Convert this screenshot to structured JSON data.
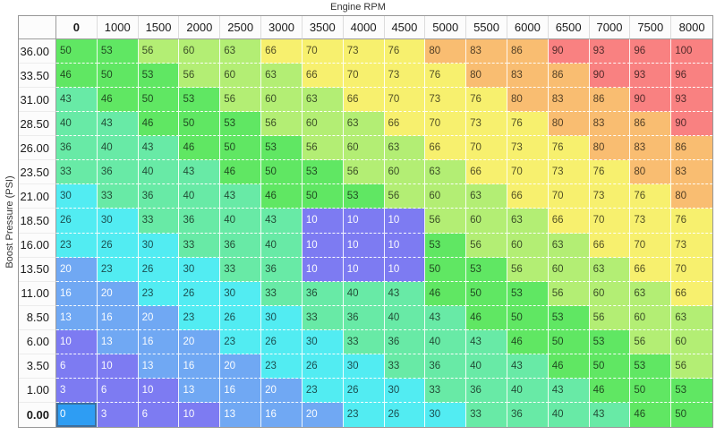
{
  "x_axis_title": "Engine RPM",
  "y_axis_title": "Boost Pressure (PSI)",
  "chart_data": {
    "type": "heatmap",
    "title": "Engine RPM",
    "xlabel": "Engine RPM",
    "ylabel": "Boost Pressure (PSI)",
    "columns": [
      "0",
      "1000",
      "1500",
      "2000",
      "2500",
      "3000",
      "3500",
      "4000",
      "4500",
      "5000",
      "5500",
      "6000",
      "6500",
      "7000",
      "7500",
      "8000"
    ],
    "rows": [
      "36.00",
      "33.50",
      "31.00",
      "28.50",
      "26.00",
      "23.50",
      "21.00",
      "18.50",
      "16.00",
      "13.50",
      "11.00",
      "8.50",
      "6.00",
      "3.50",
      "1.00",
      "0.00"
    ],
    "values": [
      [
        50,
        53,
        56,
        60,
        63,
        66,
        70,
        73,
        76,
        80,
        83,
        86,
        90,
        93,
        96,
        100
      ],
      [
        46,
        50,
        53,
        56,
        60,
        63,
        66,
        70,
        73,
        76,
        80,
        83,
        86,
        90,
        93,
        96
      ],
      [
        43,
        46,
        50,
        53,
        56,
        60,
        63,
        66,
        70,
        73,
        76,
        80,
        83,
        86,
        90,
        93
      ],
      [
        40,
        43,
        46,
        50,
        53,
        56,
        60,
        63,
        66,
        70,
        73,
        76,
        80,
        83,
        86,
        90
      ],
      [
        36,
        40,
        43,
        46,
        50,
        53,
        56,
        60,
        63,
        66,
        70,
        73,
        76,
        80,
        83,
        86
      ],
      [
        33,
        36,
        40,
        43,
        46,
        50,
        53,
        56,
        60,
        63,
        66,
        70,
        73,
        76,
        80,
        83
      ],
      [
        30,
        33,
        36,
        40,
        43,
        46,
        50,
        53,
        56,
        60,
        63,
        66,
        70,
        73,
        76,
        80
      ],
      [
        26,
        30,
        33,
        36,
        40,
        43,
        10,
        10,
        10,
        56,
        60,
        63,
        66,
        70,
        73,
        76
      ],
      [
        23,
        26,
        30,
        33,
        36,
        40,
        10,
        10,
        10,
        53,
        56,
        60,
        63,
        66,
        70,
        73
      ],
      [
        20,
        23,
        26,
        30,
        33,
        36,
        10,
        10,
        10,
        50,
        53,
        56,
        60,
        63,
        66,
        70
      ],
      [
        16,
        20,
        23,
        26,
        30,
        33,
        36,
        40,
        43,
        46,
        50,
        53,
        56,
        60,
        63,
        66
      ],
      [
        13,
        16,
        20,
        23,
        26,
        30,
        33,
        36,
        40,
        43,
        46,
        50,
        53,
        56,
        60,
        63
      ],
      [
        10,
        13,
        16,
        20,
        23,
        26,
        30,
        33,
        36,
        40,
        43,
        46,
        50,
        53,
        56,
        60
      ],
      [
        6,
        10,
        13,
        16,
        20,
        23,
        26,
        30,
        33,
        36,
        40,
        43,
        46,
        50,
        53,
        56
      ],
      [
        3,
        6,
        10,
        13,
        16,
        20,
        23,
        26,
        30,
        33,
        36,
        40,
        43,
        46,
        50,
        53
      ],
      [
        0,
        3,
        6,
        10,
        13,
        16,
        20,
        23,
        26,
        30,
        33,
        36,
        40,
        43,
        46,
        50
      ]
    ],
    "color_bands": [
      {
        "max": 10,
        "bg": "#7d7bf2",
        "fg": "light"
      },
      {
        "max": 20,
        "bg": "#70a8f3",
        "fg": "light"
      },
      {
        "max": 30,
        "bg": "#52ecf2",
        "fg": "dark"
      },
      {
        "max": 43,
        "bg": "#68eaa6",
        "fg": "dark"
      },
      {
        "max": 53,
        "bg": "#60e763",
        "fg": "dark"
      },
      {
        "max": 63,
        "bg": "#b3ee74",
        "fg": "dark"
      },
      {
        "max": 76,
        "bg": "#f7f06e",
        "fg": "dark"
      },
      {
        "max": 86,
        "bg": "#f9bd71",
        "fg": "dark"
      },
      {
        "max": 100,
        "bg": "#f98181",
        "fg": "dark"
      }
    ],
    "selected_cell": {
      "row": "0.00",
      "column": "0",
      "value": 0,
      "bg": "#2e9df3",
      "border": "#3c6f9f"
    },
    "legend_position": "none",
    "grid": "white dashed horizontal / white solid vertical"
  }
}
